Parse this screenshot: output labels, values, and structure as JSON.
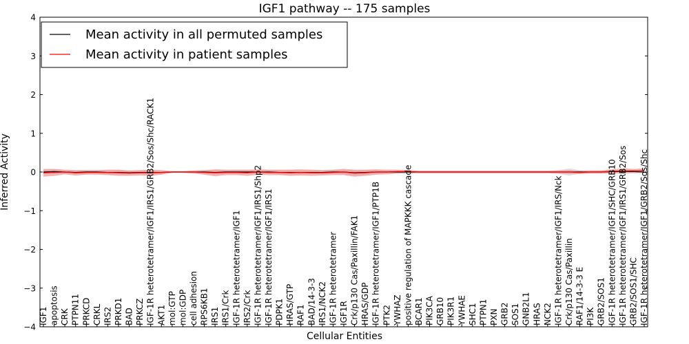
{
  "chart_data": {
    "type": "line",
    "title": "IGF1 pathway -- 175 samples",
    "xlabel": "Cellular Entities",
    "ylabel": "Inferred Activity",
    "ylim": [
      -4,
      4
    ],
    "yticks": [
      "−4",
      "−3",
      "−2",
      "−1",
      "0",
      "1",
      "2",
      "3",
      "4"
    ],
    "grid": false,
    "legend_position": "top-left",
    "categories": [
      "IGF1",
      "apoptosis",
      "CRK",
      "PTPN11",
      "PRKCD",
      "CRKL",
      "IRS2",
      "PRKD1",
      "BAD",
      "PRKCZ",
      "IGF-1R heterotetramer/IGF1/IRS1/GRB2/Sos/Shc/RACK1",
      "AKT1",
      "mol:GTP",
      "mol:GDP",
      "cell adhesion",
      "RPS6KB1",
      "IRS1",
      "IRS1/Crk",
      "IGF-1R heterotetramer/IGF1",
      "IRS2/Crk",
      "IGF-1R heterotetramer/IGF1/IRS1/Shp2",
      "IGF-1R heterotetramer/IGF1/IRS1",
      "PDPK1",
      "HRAS/GTP",
      "RAF1",
      "BAD/14-3-3",
      "IRS1/NCK2",
      "IGF-1R heterotetramer",
      "IGF1R",
      "Crk/p130 Cas/Paxillin/FAK1",
      "HRAS/GDP",
      "IGF-1R heterotetramer/IGF1/PTP1B",
      "PTK2",
      "YWHAZ",
      "positive regulation of MAPKKK cascade",
      "BCAR1",
      "PIK3CA",
      "GRB10",
      "PIK3R1",
      "YWHAE",
      "SHC1",
      "PTPN1",
      "PXN",
      "GRB2",
      "SOS1",
      "GNB2L1",
      "HRAS",
      "NCK2",
      "IGF-1R heterotetramer/IGF1/IRS/Nck",
      "Crk/p130 Cas/Paxillin",
      "RAF1/14-3-3 E",
      "PI3K",
      "GRB2/SOS1",
      "IGF-1R heterotetramer/IGF1/SHC/GRB10",
      "IGF-1R heterotetramer/IGF1/IRS1/GRB2/Sos",
      "GRB2/SOS1/SHC",
      "IGF-1R heterotetramer/IGF1/GRB2/Sos/Shc"
    ],
    "series": [
      {
        "name": "Mean activity in all permuted samples",
        "color": "#000000",
        "values": [
          0.0,
          0.01,
          0.0,
          -0.01,
          0.0,
          0.0,
          -0.01,
          -0.01,
          -0.02,
          -0.01,
          -0.01,
          -0.01,
          0.0,
          0.0,
          0.0,
          0.0,
          -0.01,
          0.0,
          0.0,
          0.0,
          0.0,
          0.0,
          -0.01,
          -0.01,
          -0.01,
          -0.01,
          -0.01,
          0.0,
          0.0,
          -0.02,
          -0.01,
          0.0,
          0.0,
          0.0,
          0.0,
          0.0,
          0.0,
          0.0,
          0.0,
          0.0,
          0.0,
          0.0,
          0.0,
          0.0,
          0.0,
          0.0,
          0.0,
          0.0,
          0.0,
          0.0,
          0.0,
          0.0,
          0.0,
          0.01,
          0.01,
          0.01,
          0.0
        ],
        "band": [
          0.05,
          0.06,
          0.04,
          0.05,
          0.04,
          0.04,
          0.05,
          0.06,
          0.05,
          0.05,
          0.05,
          0.04,
          0.02,
          0.02,
          0.03,
          0.04,
          0.06,
          0.05,
          0.05,
          0.05,
          0.05,
          0.05,
          0.05,
          0.06,
          0.05,
          0.05,
          0.05,
          0.05,
          0.06,
          0.07,
          0.06,
          0.05,
          0.04,
          0.04,
          0.03,
          0.03,
          0.03,
          0.03,
          0.03,
          0.03,
          0.03,
          0.03,
          0.03,
          0.03,
          0.03,
          0.03,
          0.03,
          0.03,
          0.05,
          0.09,
          0.05,
          0.04,
          0.04,
          0.04,
          0.05,
          0.05,
          0.04
        ]
      },
      {
        "name": "Mean activity in patient samples",
        "color": "#ff0000",
        "values": [
          -0.02,
          -0.01,
          0.0,
          -0.02,
          -0.01,
          -0.01,
          -0.01,
          -0.02,
          -0.03,
          -0.02,
          -0.02,
          -0.01,
          0.0,
          0.0,
          0.0,
          -0.01,
          -0.02,
          -0.01,
          -0.01,
          -0.02,
          0.0,
          -0.01,
          -0.01,
          -0.02,
          -0.01,
          -0.02,
          -0.02,
          -0.01,
          0.0,
          -0.03,
          -0.02,
          0.0,
          0.0,
          0.01,
          0.01,
          0.0,
          0.0,
          0.0,
          0.0,
          0.0,
          0.0,
          0.0,
          0.0,
          0.0,
          0.0,
          0.0,
          0.0,
          0.0,
          0.0,
          0.0,
          -0.01,
          0.0,
          0.0,
          0.02,
          0.03,
          0.03,
          0.04
        ],
        "band": [
          0.1,
          0.09,
          0.06,
          0.07,
          0.06,
          0.06,
          0.07,
          0.08,
          0.07,
          0.07,
          0.08,
          0.06,
          0.02,
          0.02,
          0.04,
          0.06,
          0.09,
          0.07,
          0.07,
          0.08,
          0.07,
          0.07,
          0.07,
          0.08,
          0.08,
          0.08,
          0.07,
          0.07,
          0.08,
          0.09,
          0.08,
          0.07,
          0.06,
          0.05,
          0.04,
          0.03,
          0.03,
          0.03,
          0.03,
          0.03,
          0.03,
          0.03,
          0.03,
          0.03,
          0.03,
          0.03,
          0.03,
          0.03,
          0.04,
          0.05,
          0.04,
          0.04,
          0.04,
          0.05,
          0.06,
          0.05,
          0.05
        ]
      }
    ]
  }
}
